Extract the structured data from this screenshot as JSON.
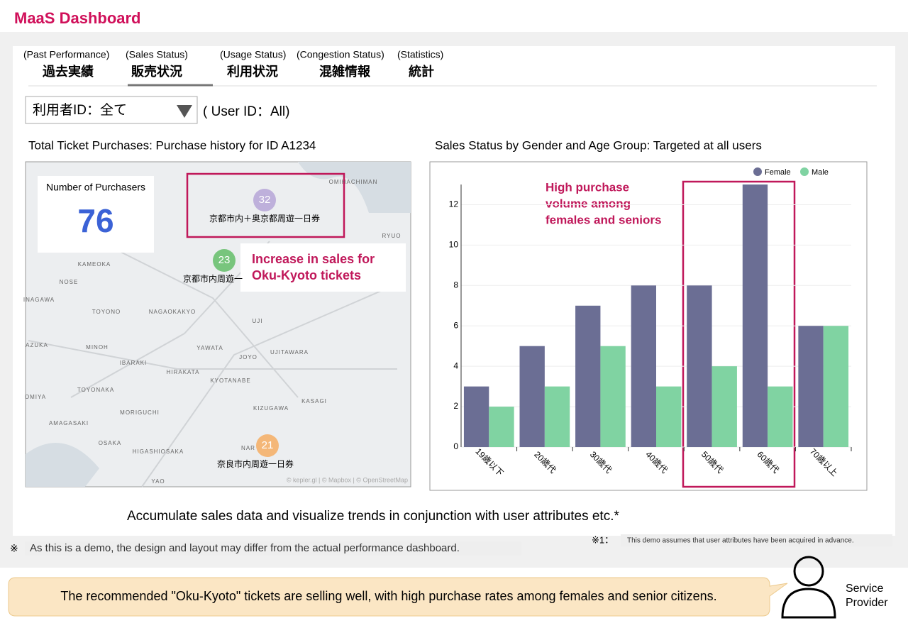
{
  "header": {
    "title": "MaaS Dashboard"
  },
  "tabs": [
    {
      "en": "(Past Performance)",
      "ja": "過去実績"
    },
    {
      "en": "(Sales Status)",
      "ja": "販売状況"
    },
    {
      "en": "(Usage Status)",
      "ja": "利用状況"
    },
    {
      "en": "(Congestion Status)",
      "ja": "混雑情報"
    },
    {
      "en": "(Statistics)",
      "ja": "統計"
    }
  ],
  "selected_tab": 1,
  "filter": {
    "select": "利用者ID：全て",
    "caption": "( User ID：All)"
  },
  "map_panel": {
    "title": "Total Ticket Purchases: Purchase history for ID A1234",
    "kpi_label": "Number of Purchasers",
    "kpi_value": 76,
    "clusters": [
      {
        "count": 32,
        "label": "京都市内＋奥京都周遊一日券",
        "color": "#b9a8d8"
      },
      {
        "count": 23,
        "label": "京都市内周遊一",
        "color": "#6cc070"
      },
      {
        "count": 21,
        "label": "奈良市内周遊一日券",
        "color": "#f5b06a"
      }
    ],
    "callout": [
      "Increase in sales for",
      "Oku-Kyoto tickets"
    ],
    "places": [
      "OMIHACHIMAN",
      "RYUO",
      "KAMEOKA",
      "NOSE",
      "INAGAWA",
      "TOYONO",
      "NAGAOKAKYO",
      "UJI",
      "AZUKA",
      "MINOH",
      "YAWATA",
      "UJITAWARA",
      "JOYO",
      "IBARAKI",
      "HIRAKATA",
      "KYOTANABE",
      "TOYONAKA",
      "KASAGI",
      "OMIYA",
      "KIZUGAWA",
      "MORIGUCHI",
      "AMAGASAKI",
      "OSAKA",
      "HIGASHIOSAKA",
      "NAR",
      "YAO"
    ],
    "attribution": "© kepler.gl | © Mapbox | © OpenStreetMap"
  },
  "chart_data": {
    "type": "bar",
    "title": "Sales Status by Gender and Age Group: Targeted at all users",
    "categories": [
      "19歳以下",
      "20歳代",
      "30歳代",
      "40歳代",
      "50歳代",
      "60歳代",
      "70歳以上"
    ],
    "series": [
      {
        "name": "Female",
        "color": "#6b6e94",
        "values": [
          3,
          5,
          7,
          8,
          8,
          13,
          6
        ]
      },
      {
        "name": "Male",
        "color": "#80d3a2",
        "values": [
          2,
          3,
          5,
          3,
          4,
          3,
          6
        ]
      }
    ],
    "ylim": [
      0,
      13
    ],
    "yticks": [
      0,
      2,
      4,
      6,
      8,
      10,
      12
    ],
    "grid": true,
    "legend": "top-right",
    "annotation": [
      "High purchase",
      "volume among",
      "females and seniors"
    ]
  },
  "caption": "Accumulate sales data and visualize trends in conjunction with user attributes etc.*",
  "notes": [
    {
      "mark": "※",
      "text": "As this is a demo, the design and layout may differ from the actual performance dashboard."
    },
    {
      "mark": "※1：",
      "text": "This demo assumes that user attributes have been acquired in advance."
    }
  ],
  "footer": {
    "message": "The recommended \"Oku-Kyoto\" tickets are selling well, with high purchase rates among females and senior citizens.",
    "role": [
      "Service",
      "Provider"
    ]
  }
}
